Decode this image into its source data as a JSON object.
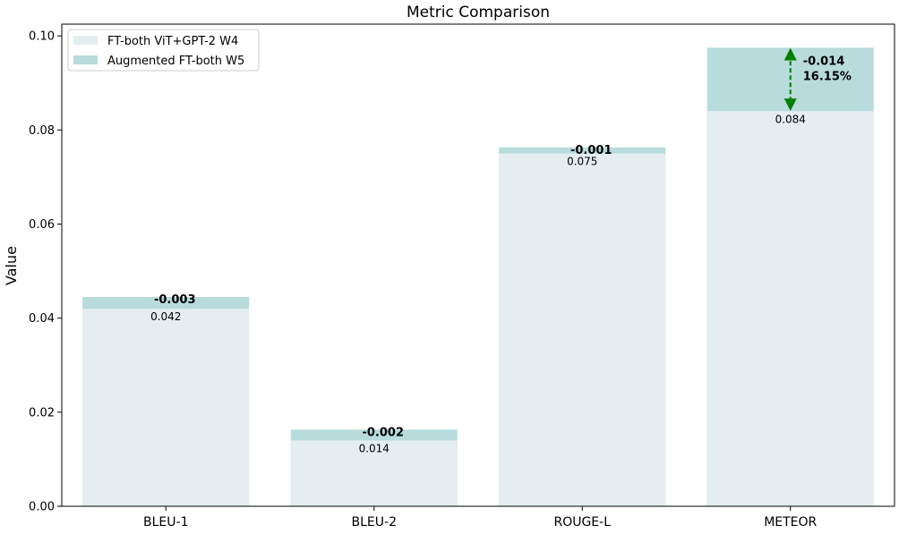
{
  "chart_data": {
    "type": "bar",
    "title": "Metric Comparison",
    "xlabel": "",
    "ylabel": "Value",
    "ylim": [
      0,
      0.1025
    ],
    "yticks": [
      "0.00",
      "0.02",
      "0.04",
      "0.06",
      "0.08",
      "0.10"
    ],
    "ytick_values": [
      0,
      0.02,
      0.04,
      0.06,
      0.08,
      0.1
    ],
    "categories": [
      "BLEU-1",
      "BLEU-2",
      "ROUGE-L",
      "METEOR"
    ],
    "grid": false,
    "legend_position": "top-left",
    "series": [
      {
        "name": "FT-both ViT+GPT-2 W4",
        "color": "#e4eef0",
        "values": [
          0.042,
          0.014,
          0.075,
          0.084
        ],
        "labels": [
          "0.042",
          "0.014",
          "0.075",
          "0.084"
        ]
      },
      {
        "name": "Augmented FT-both W5",
        "color": "#b8dbdc",
        "values": [
          0.0445,
          0.0163,
          0.0763,
          0.0975
        ]
      }
    ],
    "differences": [
      "-0.003",
      "-0.002",
      "-0.001",
      "-0.014"
    ],
    "highlight": {
      "category": "METEOR",
      "difference": "-0.014",
      "percent": "16.15%",
      "arrow_color": "#008000"
    }
  }
}
